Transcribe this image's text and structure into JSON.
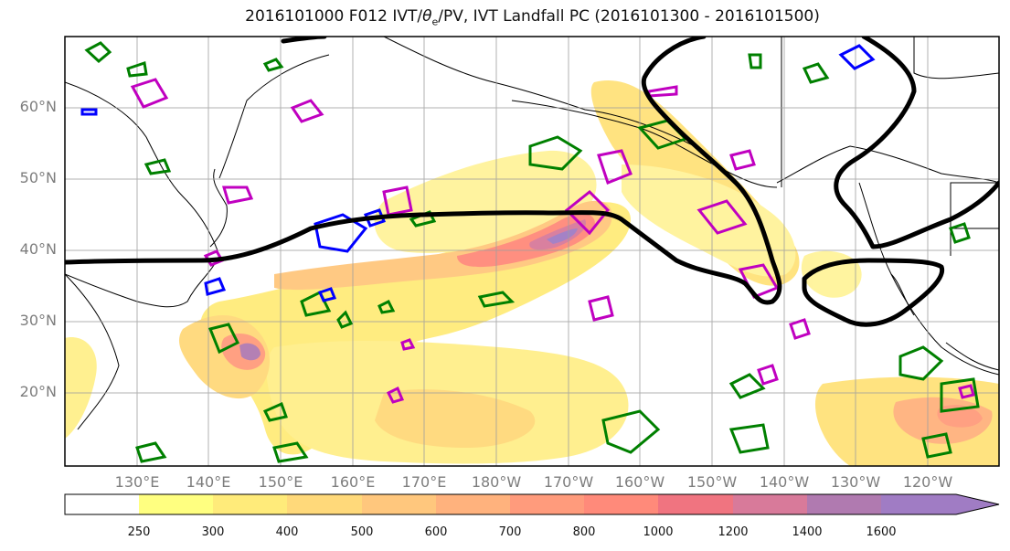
{
  "title": "2016101000 F012 IVT/θe/PV, IVT Landfall PC (2016101300 - 2016101500)",
  "map": {
    "lat_ticks": [
      "60°N",
      "50°N",
      "40°N",
      "30°N",
      "20°N"
    ],
    "lon_ticks": [
      "130°E",
      "140°E",
      "150°E",
      "160°E",
      "170°E",
      "180°W",
      "170°W",
      "160°W",
      "150°W",
      "140°W",
      "130°W",
      "120°W"
    ],
    "projection_extent": {
      "lon_min": 120,
      "lon_max": 250,
      "lat_min": 10,
      "lat_max": 70
    },
    "grid": true,
    "colors": {
      "coastline": "#000000",
      "theta_e_contour": "#008000",
      "pv_contour_positive": "#c000c0",
      "pv_contour_negative": "#0000ff",
      "landfall_pc_contour": "#000000"
    }
  },
  "colorbar": {
    "levels": [
      250,
      300,
      400,
      500,
      600,
      700,
      800,
      1000,
      1200,
      1400,
      1600
    ],
    "labels": [
      "250",
      "300",
      "400",
      "500",
      "600",
      "700",
      "800",
      "1000",
      "1200",
      "1400",
      "1600"
    ],
    "colors": [
      "#ffffff",
      "#ffff80",
      "#ffeb7a",
      "#ffd97a",
      "#ffc77d",
      "#ffb27d",
      "#ff9b7c",
      "#ff8a7a",
      "#f07480",
      "#d87a9a",
      "#b07ab0",
      "#a07cc4"
    ],
    "extend": "max"
  }
}
